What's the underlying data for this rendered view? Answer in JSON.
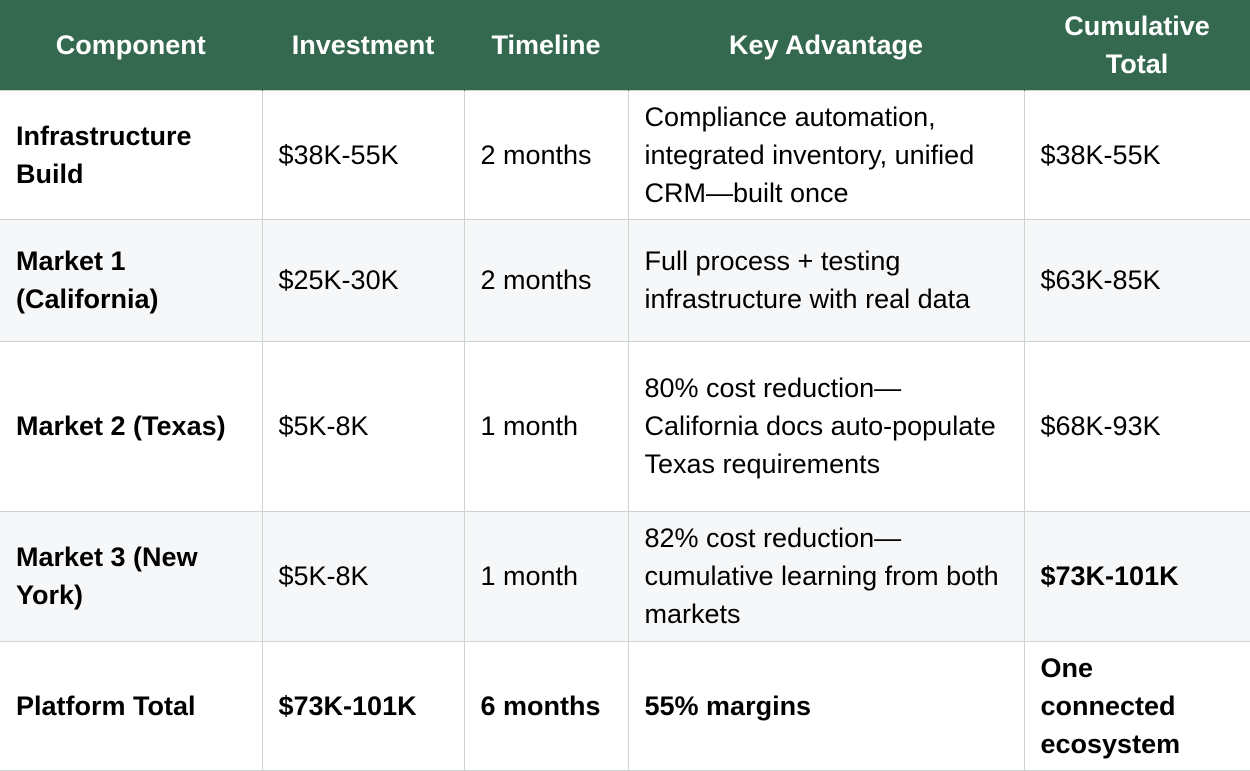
{
  "table": {
    "headers": [
      "Component",
      "Investment",
      "Timeline",
      "Key Advantage",
      "Cumulative Total"
    ],
    "rows": [
      {
        "component": "Infrastructure Build",
        "investment": "$38K-55K",
        "timeline": "2 months",
        "advantage": "Compliance automation, integrated inventory, unified CRM—built once",
        "cumulative": "$38K-55K"
      },
      {
        "component": "Market 1 (California)",
        "investment": "$25K-30K",
        "timeline": "2 months",
        "advantage": "Full process + testing infrastructure with real data",
        "cumulative": "$63K-85K"
      },
      {
        "component": "Market 2 (Texas)",
        "investment": "$5K-8K",
        "timeline": "1 month",
        "advantage": "80% cost reduction—California docs auto-populate Texas requirements",
        "cumulative": "$68K-93K"
      },
      {
        "component": "Market 3 (New York)",
        "investment": "$5K-8K",
        "timeline": "1 month",
        "advantage": "82% cost reduction—cumulative learning from both markets",
        "cumulative": "$73K-101K"
      },
      {
        "component": "Platform Total",
        "investment": "$73K-101K",
        "timeline": "6 months",
        "advantage": "55% margins",
        "cumulative": "One connected ecosystem"
      }
    ]
  },
  "colors": {
    "header_bg": "#35694f",
    "header_text": "#ffffff",
    "row_alt_bg": "#f5f7f9",
    "border": "#cfd4d2"
  }
}
